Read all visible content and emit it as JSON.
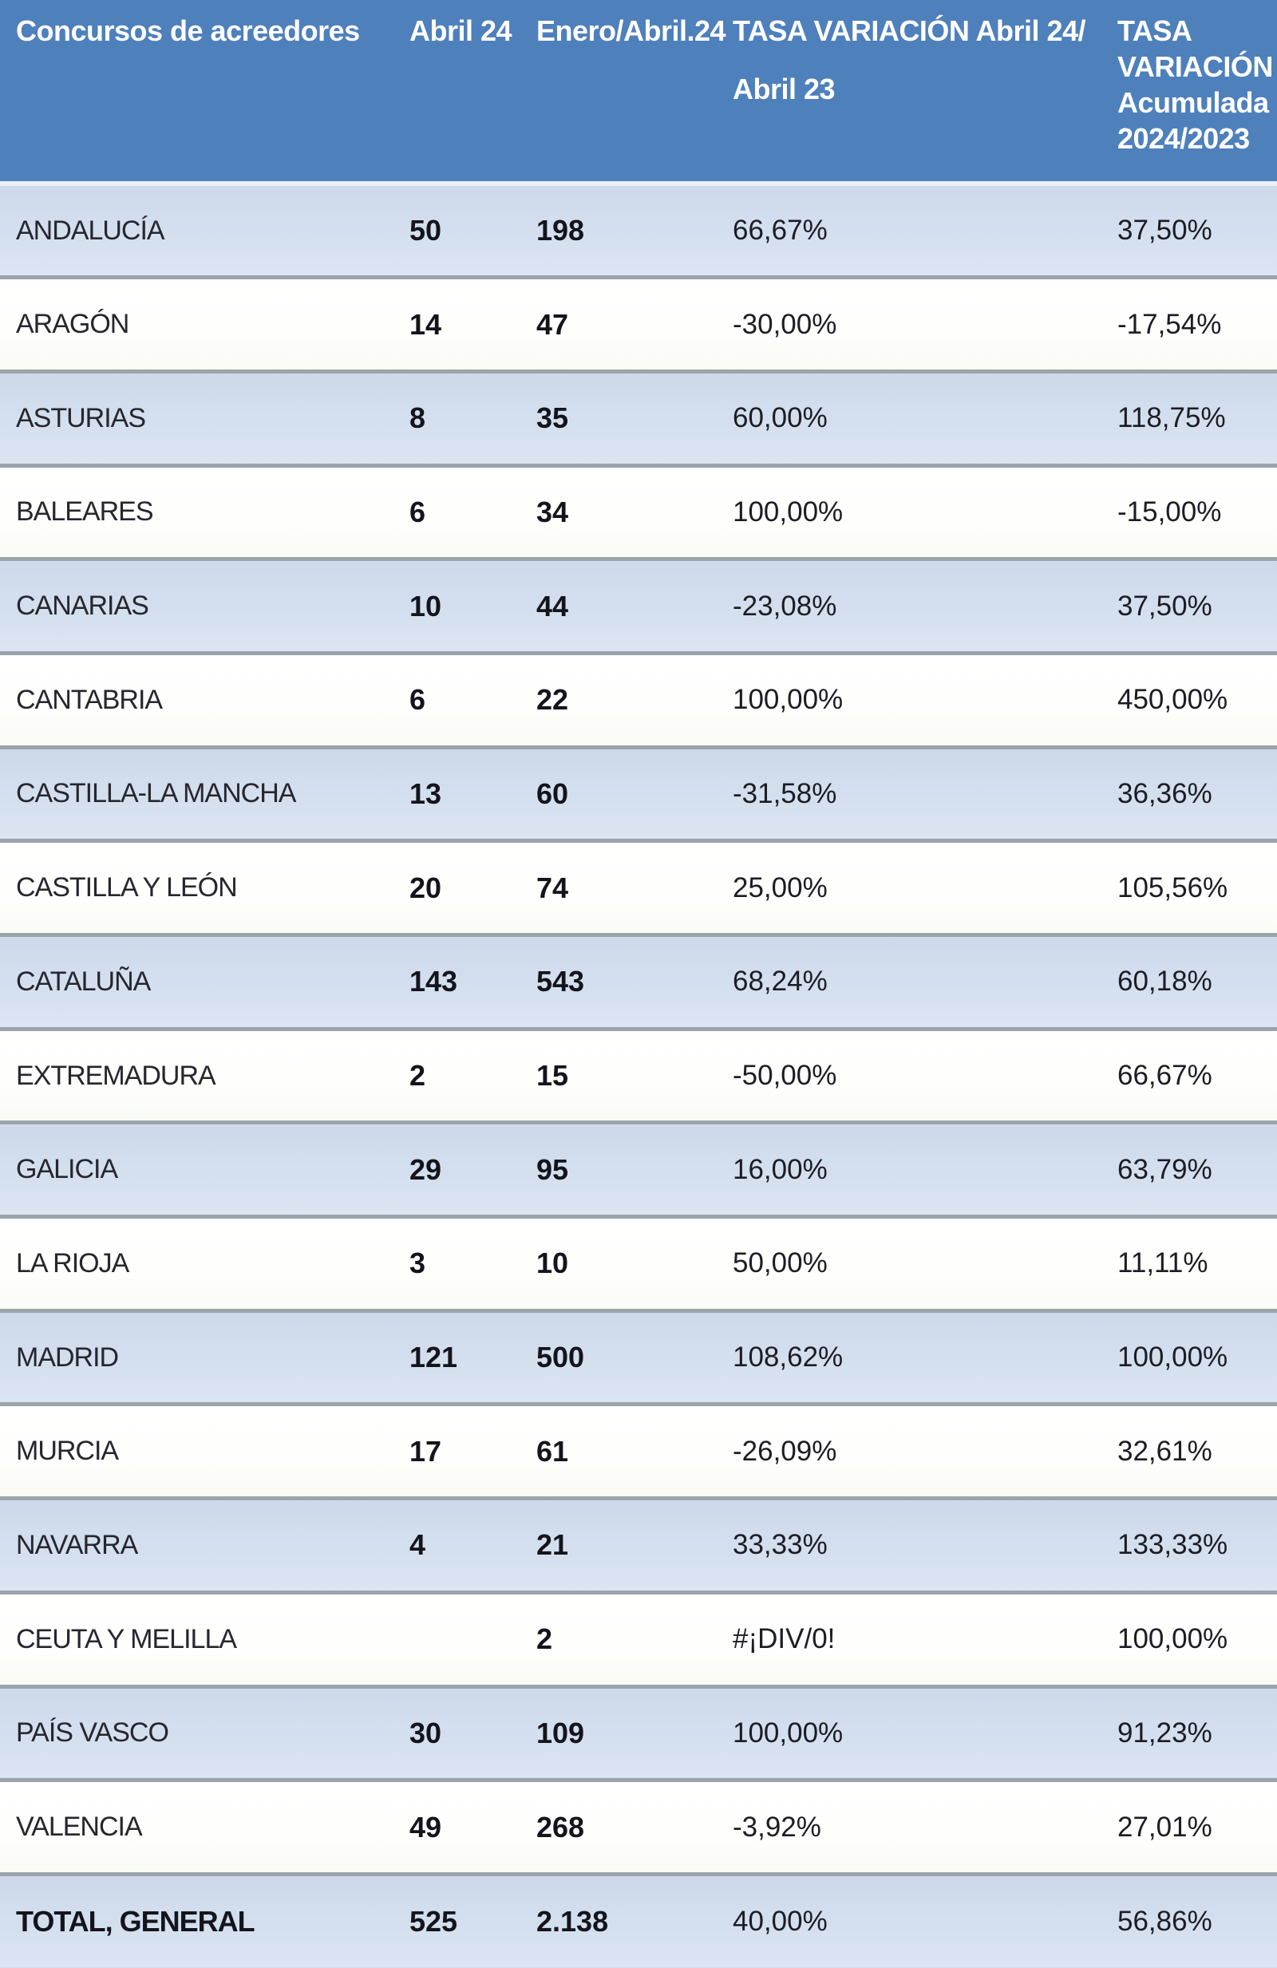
{
  "table": {
    "header": {
      "col1": "Concursos de acreedores",
      "col2": "Abril 24",
      "col3": "Enero/Abril.24",
      "col4_line1": "TASA VARIACIÓN Abril 24/",
      "col4_line2": "Abril 23",
      "col5_line1": "TASA",
      "col5_line2": "VARIACIÓN",
      "col5_line3": "Acumulada",
      "col5_line4": "2024/2023"
    },
    "rows": [
      {
        "region": "ANDALUCÍA",
        "abril24": "50",
        "enero_abril24": "198",
        "tasa_variacion_abril": "66,67%",
        "tasa_variacion_acumulada": "37,50%"
      },
      {
        "region": "ARAGÓN",
        "abril24": "14",
        "enero_abril24": "47",
        "tasa_variacion_abril": "-30,00%",
        "tasa_variacion_acumulada": "-17,54%"
      },
      {
        "region": "ASTURIAS",
        "abril24": "8",
        "enero_abril24": "35",
        "tasa_variacion_abril": "60,00%",
        "tasa_variacion_acumulada": "118,75%"
      },
      {
        "region": "BALEARES",
        "abril24": "6",
        "enero_abril24": "34",
        "tasa_variacion_abril": "100,00%",
        "tasa_variacion_acumulada": "-15,00%"
      },
      {
        "region": "CANARIAS",
        "abril24": "10",
        "enero_abril24": "44",
        "tasa_variacion_abril": "-23,08%",
        "tasa_variacion_acumulada": "37,50%"
      },
      {
        "region": "CANTABRIA",
        "abril24": "6",
        "enero_abril24": "22",
        "tasa_variacion_abril": "100,00%",
        "tasa_variacion_acumulada": "450,00%"
      },
      {
        "region": "CASTILLA-LA MANCHA",
        "abril24": "13",
        "enero_abril24": "60",
        "tasa_variacion_abril": "-31,58%",
        "tasa_variacion_acumulada": "36,36%"
      },
      {
        "region": "CASTILLA Y LEÓN",
        "abril24": "20",
        "enero_abril24": "74",
        "tasa_variacion_abril": "25,00%",
        "tasa_variacion_acumulada": "105,56%"
      },
      {
        "region": "CATALUÑA",
        "abril24": "143",
        "enero_abril24": "543",
        "tasa_variacion_abril": "68,24%",
        "tasa_variacion_acumulada": "60,18%"
      },
      {
        "region": "EXTREMADURA",
        "abril24": "2",
        "enero_abril24": "15",
        "tasa_variacion_abril": "-50,00%",
        "tasa_variacion_acumulada": "66,67%"
      },
      {
        "region": "GALICIA",
        "abril24": "29",
        "enero_abril24": "95",
        "tasa_variacion_abril": "16,00%",
        "tasa_variacion_acumulada": "63,79%"
      },
      {
        "region": "LA RIOJA",
        "abril24": "3",
        "enero_abril24": "10",
        "tasa_variacion_abril": "50,00%",
        "tasa_variacion_acumulada": "11,11%"
      },
      {
        "region": "MADRID",
        "abril24": "121",
        "enero_abril24": "500",
        "tasa_variacion_abril": "108,62%",
        "tasa_variacion_acumulada": "100,00%"
      },
      {
        "region": "MURCIA",
        "abril24": "17",
        "enero_abril24": "61",
        "tasa_variacion_abril": "-26,09%",
        "tasa_variacion_acumulada": "32,61%"
      },
      {
        "region": "NAVARRA",
        "abril24": "4",
        "enero_abril24": "21",
        "tasa_variacion_abril": "33,33%",
        "tasa_variacion_acumulada": "133,33%"
      },
      {
        "region": "CEUTA Y MELILLA",
        "abril24": "",
        "enero_abril24": "2",
        "tasa_variacion_abril": "#¡DIV/0!",
        "tasa_variacion_acumulada": "100,00%"
      },
      {
        "region": "PAÍS VASCO",
        "abril24": "30",
        "enero_abril24": "109",
        "tasa_variacion_abril": "100,00%",
        "tasa_variacion_acumulada": "91,23%"
      },
      {
        "region": "VALENCIA",
        "abril24": "49",
        "enero_abril24": "268",
        "tasa_variacion_abril": "-3,92%",
        "tasa_variacion_acumulada": "27,01%"
      }
    ],
    "total": {
      "region": "TOTAL, GENERAL",
      "abril24": "525",
      "enero_abril24": "2.138",
      "tasa_variacion_abril": "40,00%",
      "tasa_variacion_acumulada": "56,86%"
    }
  },
  "colors": {
    "header_background": "#4e80bc",
    "header_text": "#ffffff",
    "row_alt_background": "#d3dfee",
    "row_background": "#ffffff",
    "row_border": "#9aa4ab",
    "body_text": "#1c1c24"
  }
}
